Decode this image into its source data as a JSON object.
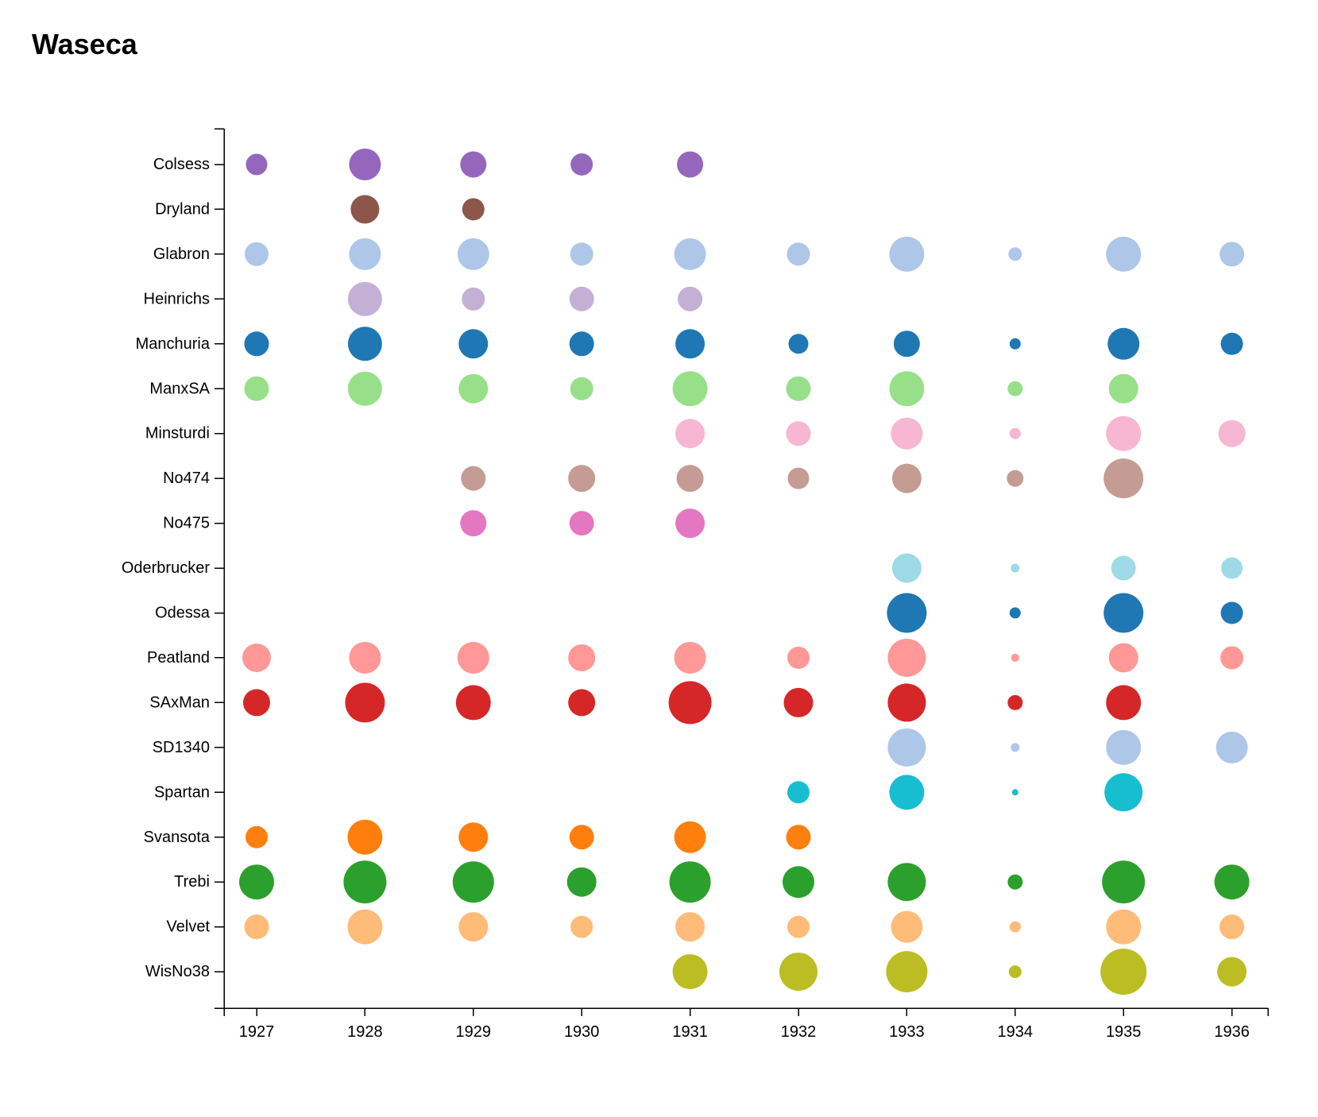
{
  "title": "Waseca",
  "chart_data": {
    "type": "scatter",
    "title": "Waseca",
    "xlabel": "",
    "ylabel": "",
    "x_categories": [
      "1927",
      "1928",
      "1929",
      "1930",
      "1931",
      "1932",
      "1933",
      "1934",
      "1935",
      "1936"
    ],
    "y_categories": [
      "Colsess",
      "Dryland",
      "Glabron",
      "Heinrichs",
      "Manchuria",
      "ManxSA",
      "Minsturdi",
      "No474",
      "No475",
      "Oderbrucker",
      "Odessa",
      "Peatland",
      "SAxMan",
      "SD1340",
      "Spartan",
      "Svansota",
      "Trebi",
      "Velvet",
      "WisNo38"
    ],
    "size_encoding": "relative yield (circle area)",
    "grid": false,
    "legend": "none",
    "series": [
      {
        "variety": "Colsess",
        "color": "#9467bd",
        "points": [
          {
            "x": "1927",
            "size": 0.27
          },
          {
            "x": "1928",
            "size": 0.4
          },
          {
            "x": "1929",
            "size": 0.33
          },
          {
            "x": "1930",
            "size": 0.28
          },
          {
            "x": "1931",
            "size": 0.33
          }
        ]
      },
      {
        "variety": "Dryland",
        "color": "#8c564b",
        "points": [
          {
            "x": "1928",
            "size": 0.36
          },
          {
            "x": "1929",
            "size": 0.28
          }
        ]
      },
      {
        "variety": "Glabron",
        "color": "#aec7e8",
        "points": [
          {
            "x": "1927",
            "size": 0.3
          },
          {
            "x": "1928",
            "size": 0.4
          },
          {
            "x": "1929",
            "size": 0.4
          },
          {
            "x": "1930",
            "size": 0.29
          },
          {
            "x": "1931",
            "size": 0.4
          },
          {
            "x": "1932",
            "size": 0.29
          },
          {
            "x": "1933",
            "size": 0.44
          },
          {
            "x": "1934",
            "size": 0.17
          },
          {
            "x": "1935",
            "size": 0.44
          },
          {
            "x": "1936",
            "size": 0.31
          }
        ]
      },
      {
        "variety": "Heinrichs",
        "color": "#c5b0d5",
        "points": [
          {
            "x": "1928",
            "size": 0.43
          },
          {
            "x": "1929",
            "size": 0.29
          },
          {
            "x": "1930",
            "size": 0.31
          },
          {
            "x": "1931",
            "size": 0.31
          }
        ]
      },
      {
        "variety": "Manchuria",
        "color": "#1f77b4",
        "points": [
          {
            "x": "1927",
            "size": 0.31
          },
          {
            "x": "1928",
            "size": 0.43
          },
          {
            "x": "1929",
            "size": 0.37
          },
          {
            "x": "1930",
            "size": 0.31
          },
          {
            "x": "1931",
            "size": 0.37
          },
          {
            "x": "1932",
            "size": 0.25
          },
          {
            "x": "1933",
            "size": 0.33
          },
          {
            "x": "1934",
            "size": 0.14
          },
          {
            "x": "1935",
            "size": 0.4
          },
          {
            "x": "1936",
            "size": 0.28
          }
        ]
      },
      {
        "variety": "ManxSA",
        "color": "#98df8a",
        "points": [
          {
            "x": "1927",
            "size": 0.31
          },
          {
            "x": "1928",
            "size": 0.43
          },
          {
            "x": "1929",
            "size": 0.37
          },
          {
            "x": "1930",
            "size": 0.29
          },
          {
            "x": "1931",
            "size": 0.44
          },
          {
            "x": "1932",
            "size": 0.31
          },
          {
            "x": "1933",
            "size": 0.44
          },
          {
            "x": "1934",
            "size": 0.19
          },
          {
            "x": "1935",
            "size": 0.37
          }
        ]
      },
      {
        "variety": "Minsturdi",
        "color": "#f7b6d2",
        "points": [
          {
            "x": "1931",
            "size": 0.37
          },
          {
            "x": "1932",
            "size": 0.31
          },
          {
            "x": "1933",
            "size": 0.4
          },
          {
            "x": "1934",
            "size": 0.14
          },
          {
            "x": "1935",
            "size": 0.44
          },
          {
            "x": "1936",
            "size": 0.34
          }
        ]
      },
      {
        "variety": "No474",
        "color": "#c49c94",
        "points": [
          {
            "x": "1929",
            "size": 0.31
          },
          {
            "x": "1930",
            "size": 0.34
          },
          {
            "x": "1931",
            "size": 0.34
          },
          {
            "x": "1932",
            "size": 0.27
          },
          {
            "x": "1933",
            "size": 0.37
          },
          {
            "x": "1934",
            "size": 0.21
          },
          {
            "x": "1935",
            "size": 0.5
          }
        ]
      },
      {
        "variety": "No475",
        "color": "#e377c2",
        "points": [
          {
            "x": "1929",
            "size": 0.33
          },
          {
            "x": "1930",
            "size": 0.31
          },
          {
            "x": "1931",
            "size": 0.37
          }
        ]
      },
      {
        "variety": "Oderbrucker",
        "color": "#9edae5",
        "points": [
          {
            "x": "1933",
            "size": 0.37
          },
          {
            "x": "1934",
            "size": 0.11
          },
          {
            "x": "1935",
            "size": 0.31
          },
          {
            "x": "1936",
            "size": 0.27
          }
        ]
      },
      {
        "variety": "Odessa",
        "color": "#1f77b4",
        "points": [
          {
            "x": "1933",
            "size": 0.5
          },
          {
            "x": "1934",
            "size": 0.14
          },
          {
            "x": "1935",
            "size": 0.5
          },
          {
            "x": "1936",
            "size": 0.28
          }
        ]
      },
      {
        "variety": "Peatland",
        "color": "#ff9896",
        "points": [
          {
            "x": "1927",
            "size": 0.36
          },
          {
            "x": "1928",
            "size": 0.4
          },
          {
            "x": "1929",
            "size": 0.4
          },
          {
            "x": "1930",
            "size": 0.34
          },
          {
            "x": "1931",
            "size": 0.4
          },
          {
            "x": "1932",
            "size": 0.28
          },
          {
            "x": "1933",
            "size": 0.48
          },
          {
            "x": "1934",
            "size": 0.1
          },
          {
            "x": "1935",
            "size": 0.37
          },
          {
            "x": "1936",
            "size": 0.29
          }
        ]
      },
      {
        "variety": "SAxMan",
        "color": "#d62728",
        "points": [
          {
            "x": "1927",
            "size": 0.34
          },
          {
            "x": "1928",
            "size": 0.5
          },
          {
            "x": "1929",
            "size": 0.44
          },
          {
            "x": "1930",
            "size": 0.34
          },
          {
            "x": "1931",
            "size": 0.54
          },
          {
            "x": "1932",
            "size": 0.37
          },
          {
            "x": "1933",
            "size": 0.48
          },
          {
            "x": "1934",
            "size": 0.19
          },
          {
            "x": "1935",
            "size": 0.44
          }
        ]
      },
      {
        "variety": "SD1340",
        "color": "#aec7e8",
        "points": [
          {
            "x": "1933",
            "size": 0.48
          },
          {
            "x": "1934",
            "size": 0.11
          },
          {
            "x": "1935",
            "size": 0.44
          },
          {
            "x": "1936",
            "size": 0.4
          }
        ]
      },
      {
        "variety": "Spartan",
        "color": "#17becf",
        "points": [
          {
            "x": "1932",
            "size": 0.28
          },
          {
            "x": "1933",
            "size": 0.44
          },
          {
            "x": "1934",
            "size": 0.08
          },
          {
            "x": "1935",
            "size": 0.48
          }
        ]
      },
      {
        "variety": "Svansota",
        "color": "#ff7f0e",
        "points": [
          {
            "x": "1927",
            "size": 0.28
          },
          {
            "x": "1928",
            "size": 0.44
          },
          {
            "x": "1929",
            "size": 0.37
          },
          {
            "x": "1930",
            "size": 0.31
          },
          {
            "x": "1931",
            "size": 0.4
          },
          {
            "x": "1932",
            "size": 0.31
          }
        ]
      },
      {
        "variety": "Trebi",
        "color": "#2ca02c",
        "points": [
          {
            "x": "1927",
            "size": 0.44
          },
          {
            "x": "1928",
            "size": 0.54
          },
          {
            "x": "1929",
            "size": 0.52
          },
          {
            "x": "1930",
            "size": 0.37
          },
          {
            "x": "1931",
            "size": 0.52
          },
          {
            "x": "1932",
            "size": 0.4
          },
          {
            "x": "1933",
            "size": 0.48
          },
          {
            "x": "1934",
            "size": 0.19
          },
          {
            "x": "1935",
            "size": 0.54
          },
          {
            "x": "1936",
            "size": 0.44
          }
        ]
      },
      {
        "variety": "Velvet",
        "color": "#ffbb78",
        "points": [
          {
            "x": "1927",
            "size": 0.31
          },
          {
            "x": "1928",
            "size": 0.44
          },
          {
            "x": "1929",
            "size": 0.37
          },
          {
            "x": "1930",
            "size": 0.28
          },
          {
            "x": "1931",
            "size": 0.37
          },
          {
            "x": "1932",
            "size": 0.28
          },
          {
            "x": "1933",
            "size": 0.4
          },
          {
            "x": "1934",
            "size": 0.14
          },
          {
            "x": "1935",
            "size": 0.44
          },
          {
            "x": "1936",
            "size": 0.31
          }
        ]
      },
      {
        "variety": "WisNo38",
        "color": "#bcbd22",
        "points": [
          {
            "x": "1931",
            "size": 0.44
          },
          {
            "x": "1932",
            "size": 0.48
          },
          {
            "x": "1933",
            "size": 0.52
          },
          {
            "x": "1934",
            "size": 0.16
          },
          {
            "x": "1935",
            "size": 0.58
          },
          {
            "x": "1936",
            "size": 0.37
          }
        ]
      }
    ]
  }
}
